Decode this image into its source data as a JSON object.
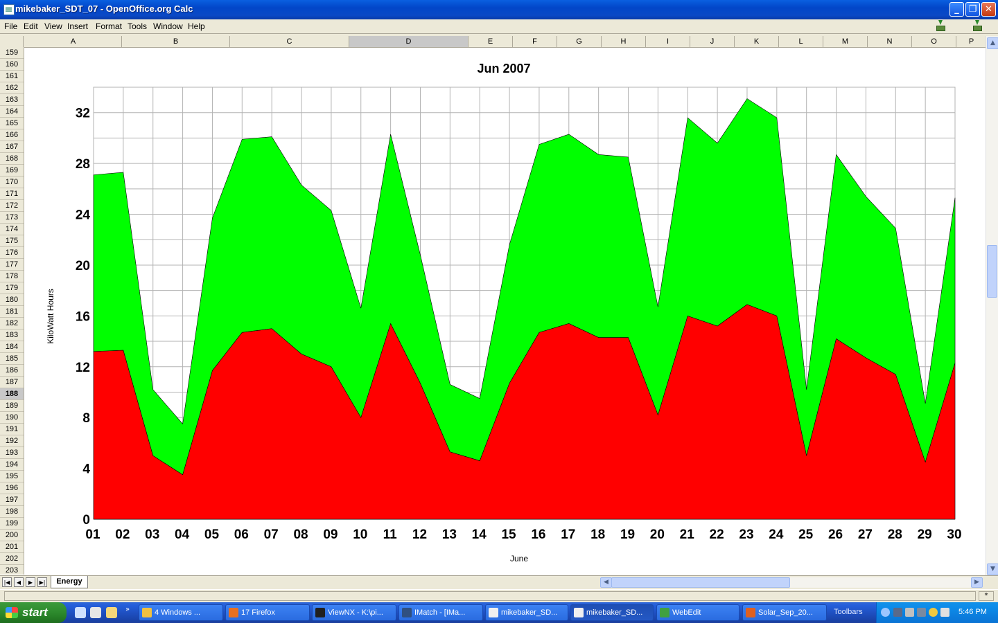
{
  "window": {
    "title": "mikebaker_SDT_07 - OpenOffice.org Calc"
  },
  "menu": {
    "items": [
      "File",
      "Edit",
      "View",
      "Insert",
      "Format",
      "Tools",
      "Window",
      "Help"
    ]
  },
  "columns": [
    "A",
    "B",
    "C",
    "D",
    "E",
    "F",
    "G",
    "H",
    "I",
    "J",
    "K",
    "L",
    "M",
    "N",
    "O",
    "P"
  ],
  "selected_column": "D",
  "rows": [
    "159",
    "160",
    "161",
    "162",
    "163",
    "164",
    "165",
    "166",
    "167",
    "168",
    "169",
    "170",
    "171",
    "172",
    "173",
    "174",
    "175",
    "176",
    "177",
    "178",
    "179",
    "180",
    "181",
    "182",
    "183",
    "184",
    "185",
    "186",
    "187",
    "188",
    "189",
    "190",
    "191",
    "192",
    "193",
    "194",
    "195",
    "196",
    "197",
    "198",
    "199",
    "200",
    "201",
    "202",
    "203"
  ],
  "selected_row": "188",
  "sheet": {
    "tab_label": "Energy",
    "nav_buttons": [
      "first-sheet",
      "prev-sheet",
      "next-sheet",
      "last-sheet"
    ]
  },
  "chart_data": {
    "type": "area",
    "stacked": true,
    "title": "Jun 2007",
    "xlabel": "June",
    "ylabel": "KiloWatt Hours",
    "ylim": [
      0,
      34
    ],
    "yticks": [
      0,
      4,
      8,
      12,
      16,
      20,
      24,
      28,
      32
    ],
    "grid": true,
    "categories": [
      "01",
      "02",
      "03",
      "04",
      "05",
      "06",
      "07",
      "08",
      "09",
      "10",
      "11",
      "12",
      "13",
      "14",
      "15",
      "16",
      "17",
      "18",
      "19",
      "20",
      "21",
      "22",
      "23",
      "24",
      "25",
      "26",
      "27",
      "28",
      "29",
      "30"
    ],
    "series": [
      {
        "color": "#ff0000",
        "values": [
          13.2,
          13.3,
          5.0,
          3.5,
          11.7,
          14.7,
          15.0,
          13.0,
          12.0,
          8.0,
          15.4,
          10.7,
          5.3,
          4.6,
          10.7,
          14.7,
          15.4,
          14.3,
          14.3,
          8.2,
          16.0,
          15.2,
          16.9,
          16.0,
          5.0,
          14.2,
          12.7,
          11.4,
          4.5,
          12.3
        ]
      },
      {
        "color": "#00ff00",
        "values": [
          13.9,
          14.0,
          5.2,
          4.0,
          12.0,
          15.2,
          15.1,
          13.3,
          12.3,
          8.6,
          14.9,
          10.1,
          5.3,
          4.9,
          10.9,
          14.8,
          14.9,
          14.4,
          14.2,
          8.5,
          15.6,
          14.4,
          16.2,
          15.6,
          5.2,
          14.5,
          12.7,
          11.5,
          4.6,
          13.0
        ]
      }
    ]
  },
  "statusbar": {
    "right_marker": "*"
  },
  "taskbar": {
    "start_label": "start",
    "buttons": [
      {
        "label": "4 Windows ...",
        "color": "#f0c040"
      },
      {
        "label": "17 Firefox",
        "color": "#e87020"
      },
      {
        "label": "ViewNX - K:\\pi...",
        "color": "#202020"
      },
      {
        "label": "IMatch - [IMa...",
        "color": "#305080"
      },
      {
        "label": "mikebaker_SD...",
        "color": "#f0f0f0"
      },
      {
        "label": "mikebaker_SD...",
        "color": "#f0f0f0",
        "active": true
      },
      {
        "label": "WebEdit",
        "color": "#40a040"
      },
      {
        "label": "Solar_Sep_20...",
        "color": "#e06020"
      }
    ],
    "toolbars_label": "Toolbars",
    "clock": "5:46 PM"
  }
}
